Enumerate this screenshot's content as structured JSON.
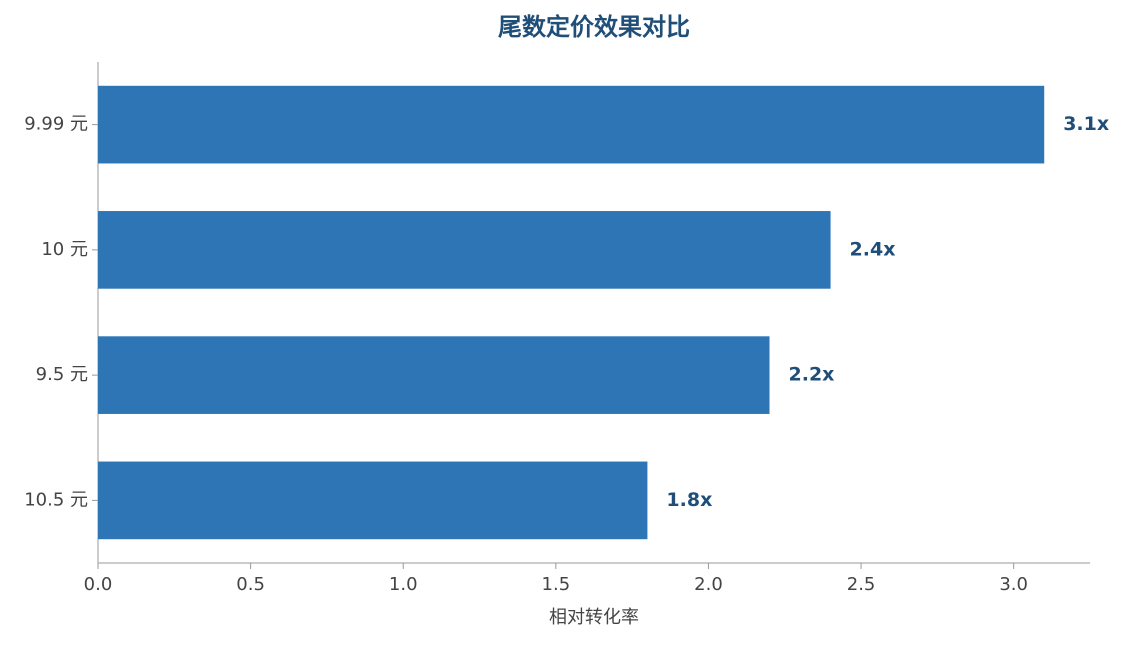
{
  "chart_data": {
    "type": "barh",
    "title": "尾数定价效果对比",
    "x_label": "相对转化率",
    "categories": [
      "9.99 元",
      "10 元",
      "9.5 元",
      "10.5 元"
    ],
    "values": [
      3.1,
      2.4,
      2.2,
      1.8
    ],
    "value_labels": [
      "3.1x",
      "2.4x",
      "2.2x",
      "1.8x"
    ],
    "color": "#2e75b6",
    "xlim": [
      0,
      3.25
    ],
    "xticks": [
      {
        "value": 0,
        "label": "0.0"
      },
      0.5,
      {
        "value": 1,
        "label": "1.0"
      },
      1.5,
      {
        "value": 2,
        "label": "2.0"
      },
      2.5,
      {
        "value": 3,
        "label": "3.0"
      }
    ],
    "grid": false
  }
}
